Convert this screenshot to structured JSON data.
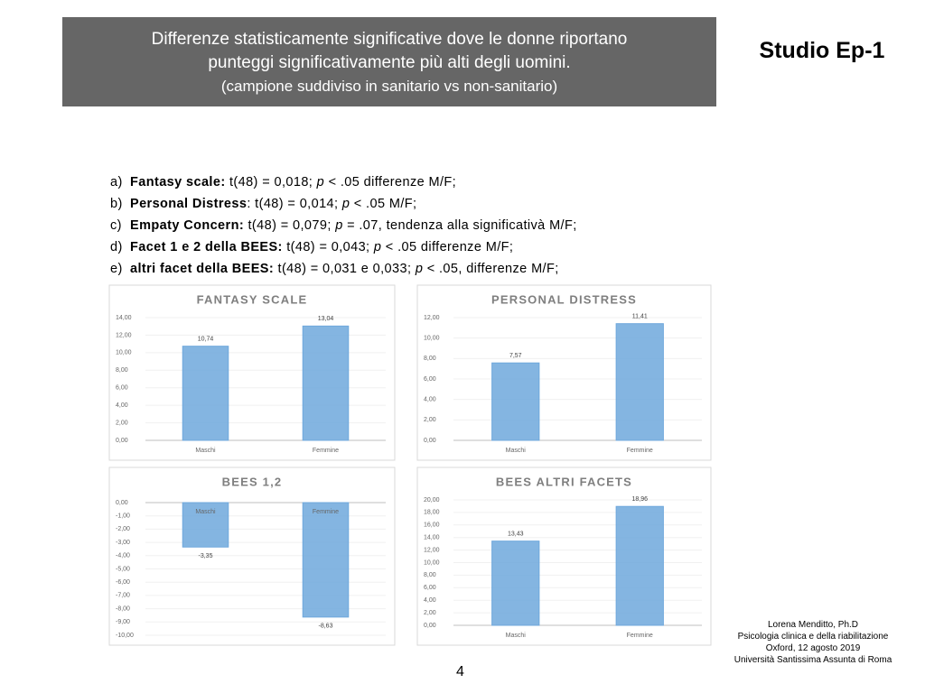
{
  "header": {
    "title_line1": "Differenze statisticamente significative dove le donne riportano",
    "title_line2": "punteggi significativamente più alti degli uomini.",
    "subtitle": "(campione suddiviso in sanitario vs non-sanitario)",
    "study": "Studio Ep-1"
  },
  "list": [
    {
      "marker": "a)",
      "label": "Fantasy scale:",
      "parts": [
        " t(48) = 0,018; ",
        "p",
        " < .05 differenze M/F;"
      ]
    },
    {
      "marker": "b)",
      "label": "Personal Distress",
      "parts": [
        ": t(48) = 0,014; ",
        "p",
        " < .05 M/F;"
      ]
    },
    {
      "marker": "c)",
      "label": "Empaty Concern:",
      "parts": [
        " t(48) = 0,079; ",
        "p",
        " = .07, tendenza alla significativà M/F;"
      ]
    },
    {
      "marker": "d)",
      "label": "Facet 1 e 2 della BEES:",
      "parts": [
        " t(48) = 0,043; ",
        "p",
        " < .05 differenze M/F;"
      ]
    },
    {
      "marker": "e)",
      "label": "altri facet della BEES:",
      "parts": [
        " t(48) = 0,031 e 0,033; ",
        "p",
        " < .05, differenze M/F;"
      ]
    }
  ],
  "chart_data": [
    {
      "type": "bar",
      "title": "FANTASY SCALE",
      "categories": [
        "Maschi",
        "Femmine"
      ],
      "values": [
        10.74,
        13.04
      ],
      "value_labels": [
        "10,74",
        "13,04"
      ],
      "color": "#6fa8dc",
      "ylim": [
        0,
        14
      ],
      "yticks": [
        {
          "value": 0,
          "label": "0,00"
        },
        {
          "value": 2,
          "label": "2,00"
        },
        {
          "value": 4,
          "label": "4,00"
        },
        {
          "value": 6,
          "label": "6,00"
        },
        {
          "value": 8,
          "label": "8,00"
        },
        {
          "value": 10,
          "label": "10,00"
        },
        {
          "value": 12,
          "label": "12,00"
        },
        {
          "value": 14,
          "label": "14,00"
        }
      ]
    },
    {
      "type": "bar",
      "title": "PERSONAL DISTRESS",
      "categories": [
        "Maschi",
        "Femmine"
      ],
      "values": [
        7.57,
        11.41
      ],
      "value_labels": [
        "7,57",
        "11,41"
      ],
      "color": "#6fa8dc",
      "ylim": [
        0,
        12
      ],
      "yticks": [
        {
          "value": 0,
          "label": "0,00"
        },
        {
          "value": 2,
          "label": "2,00"
        },
        {
          "value": 4,
          "label": "4,00"
        },
        {
          "value": 6,
          "label": "6,00"
        },
        {
          "value": 8,
          "label": "8,00"
        },
        {
          "value": 10,
          "label": "10,00"
        },
        {
          "value": 12,
          "label": "12,00"
        }
      ]
    },
    {
      "type": "bar",
      "title": "BEES 1,2",
      "categories": [
        "Maschi",
        "Femmine"
      ],
      "values": [
        -3.35,
        -8.63
      ],
      "value_labels": [
        "-3,35",
        "-8,63"
      ],
      "color": "#6fa8dc",
      "ylim": [
        -10,
        0
      ],
      "yticks": [
        {
          "value": 0,
          "label": "0,00"
        },
        {
          "value": -1,
          "label": "-1,00"
        },
        {
          "value": -2,
          "label": "-2,00"
        },
        {
          "value": -3,
          "label": "-3,00"
        },
        {
          "value": -4,
          "label": "-4,00"
        },
        {
          "value": -5,
          "label": "-5,00"
        },
        {
          "value": -6,
          "label": "-6,00"
        },
        {
          "value": -7,
          "label": "-7,00"
        },
        {
          "value": -8,
          "label": "-8,00"
        },
        {
          "value": -9,
          "label": "-9,00"
        },
        {
          "value": -10,
          "label": "-10,00"
        }
      ]
    },
    {
      "type": "bar",
      "title": "BEES ALTRI FACETS",
      "categories": [
        "Maschi",
        "Femmine"
      ],
      "values": [
        13.43,
        18.96
      ],
      "value_labels": [
        "13,43",
        "18,96"
      ],
      "color": "#6fa8dc",
      "ylim": [
        0,
        20
      ],
      "yticks": [
        {
          "value": 0,
          "label": "0,00"
        },
        {
          "value": 2,
          "label": "2,00"
        },
        {
          "value": 4,
          "label": "4,00"
        },
        {
          "value": 6,
          "label": "6,00"
        },
        {
          "value": 8,
          "label": "8,00"
        },
        {
          "value": 10,
          "label": "10,00"
        },
        {
          "value": 12,
          "label": "12,00"
        },
        {
          "value": 14,
          "label": "14,00"
        },
        {
          "value": 16,
          "label": "16,00"
        },
        {
          "value": 18,
          "label": "18,00"
        },
        {
          "value": 20,
          "label": "20,00"
        }
      ]
    }
  ],
  "footer": {
    "lines": [
      "Lorena Menditto, Ph.D",
      "Psicologia clinica e della riabilitazione",
      "Oxford, 12 agosto 2019",
      "Università Santissima Assunta di Roma"
    ],
    "page": "4"
  }
}
